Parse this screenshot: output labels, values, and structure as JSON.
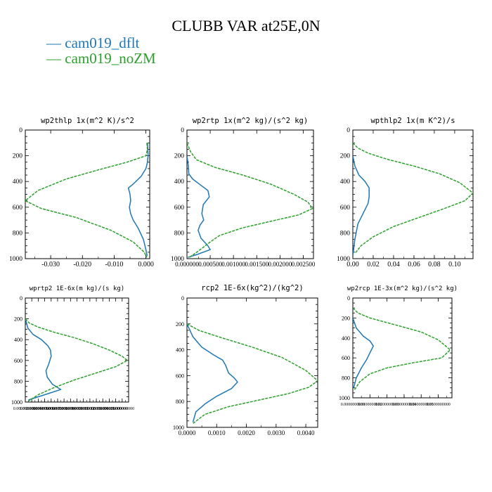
{
  "figure": {
    "title": "CLUBB VAR at25E,0N",
    "legend": [
      {
        "label": "cam019_dflt",
        "color": "#1f77b4"
      },
      {
        "label": "cam019_noZM",
        "color": "#2ca02c"
      }
    ]
  },
  "chart_data": [
    {
      "type": "line",
      "title": "wp2thlp  1x(m^2 K)/s^2",
      "ylim": [
        1000,
        0
      ],
      "xlim": [
        -0.038,
        0.0012
      ],
      "yticks": [
        "0",
        "200",
        "400",
        "600",
        "800",
        "1000"
      ],
      "xticks": [
        "-0.030",
        "-0.020",
        "-0.010",
        "0.000"
      ],
      "xtick_values": [
        -0.03,
        -0.02,
        -0.01,
        0.0
      ],
      "series": [
        {
          "name": "cam019_dflt",
          "color": "#1f77b4",
          "x": [
            0.0005,
            0.0006,
            0.0007,
            0.0005,
            0.0,
            -0.0015,
            -0.004,
            -0.0055,
            -0.005,
            -0.0048,
            -0.0052,
            -0.0048,
            -0.004,
            -0.0025,
            -0.0008,
            0.0,
            0.0004
          ],
          "y": [
            100,
            150,
            200,
            250,
            300,
            360,
            420,
            450,
            500,
            550,
            600,
            650,
            700,
            760,
            850,
            930,
            980
          ]
        },
        {
          "name": "cam019_noZM",
          "color": "#2ca02c",
          "dashed": true,
          "x": [
            0.0003,
            0.0005,
            0.0,
            -0.006,
            -0.015,
            -0.025,
            -0.034,
            -0.038,
            -0.033,
            -0.022,
            -0.011,
            -0.004,
            -0.0005,
            0.0003
          ],
          "y": [
            100,
            150,
            200,
            250,
            310,
            380,
            470,
            550,
            610,
            680,
            780,
            870,
            950,
            990
          ]
        }
      ]
    },
    {
      "type": "line",
      "title": "wp2rtp  1x(m^2 kg)/(s^2 kg)",
      "ylim": [
        1000,
        0
      ],
      "xlim": [
        0,
        0.00272
      ],
      "yticks": [
        "0",
        "200",
        "400",
        "600",
        "800",
        "1000"
      ],
      "xticks": [
        "0.000000",
        "0.000500",
        "0.001000",
        "0.001500",
        "0.002000",
        "0.002500"
      ],
      "xtick_values": [
        0,
        0.0005,
        0.001,
        0.0015,
        0.002,
        0.0025
      ],
      "series": [
        {
          "name": "cam019_dflt",
          "color": "#1f77b4",
          "x": [
            0.0,
            3e-05,
            4e-05,
            0.00012,
            0.0003,
            0.00045,
            0.00048,
            0.00035,
            0.00032,
            0.00036,
            0.00028,
            0.00024,
            0.0003,
            0.00045,
            0.0005,
            0.0002,
            2e-05
          ],
          "y": [
            200,
            280,
            340,
            380,
            430,
            470,
            520,
            580,
            650,
            700,
            740,
            780,
            840,
            900,
            930,
            970,
            990
          ]
        },
        {
          "name": "cam019_noZM",
          "color": "#2ca02c",
          "dashed": true,
          "x": [
            0.0,
            8e-05,
            0.0002,
            0.0006,
            0.0012,
            0.0018,
            0.0023,
            0.0026,
            0.0027,
            0.0024,
            0.0018,
            0.0012,
            0.0007,
            0.0005,
            0.00025,
            5e-05
          ],
          "y": [
            100,
            170,
            230,
            290,
            350,
            420,
            500,
            560,
            610,
            660,
            710,
            760,
            820,
            870,
            940,
            990
          ]
        }
      ]
    },
    {
      "type": "line",
      "title": "wpthlp2  1x(m K^2)/s",
      "ylim": [
        1000,
        0
      ],
      "xlim": [
        0,
        0.118
      ],
      "yticks": [
        "0",
        "200",
        "400",
        "600",
        "800",
        "1000"
      ],
      "xticks": [
        "0.00",
        "0.02",
        "0.04",
        "0.06",
        "0.08",
        "0.10"
      ],
      "xtick_values": [
        0.0,
        0.02,
        0.04,
        0.06,
        0.08,
        0.1
      ],
      "series": [
        {
          "name": "cam019_dflt",
          "color": "#1f77b4",
          "x": [
            0.0,
            0.002,
            0.006,
            0.012,
            0.016,
            0.016,
            0.015,
            0.01,
            0.005,
            0.002,
            0.0
          ],
          "y": [
            200,
            280,
            350,
            400,
            450,
            520,
            570,
            650,
            730,
            850,
            980
          ]
        },
        {
          "name": "cam019_noZM",
          "color": "#2ca02c",
          "dashed": true,
          "x": [
            0.0,
            0.005,
            0.015,
            0.035,
            0.06,
            0.085,
            0.105,
            0.118,
            0.11,
            0.09,
            0.065,
            0.04,
            0.02,
            0.008,
            0.002
          ],
          "y": [
            100,
            140,
            180,
            230,
            280,
            340,
            410,
            490,
            550,
            610,
            680,
            750,
            830,
            900,
            960
          ]
        }
      ]
    },
    {
      "type": "line",
      "title": "wprtp2  1E-6x(m kg)/(s kg)",
      "ylim": [
        1000,
        0
      ],
      "xlim": [
        0,
        16
      ],
      "yticks": [
        "0",
        "200",
        "400",
        "600",
        "800",
        "1000"
      ],
      "xticks": [
        "0.0000000000",
        "1.0000000000",
        "2.0000000000",
        "3.0000000000",
        "4.0000000000",
        "5.0000000000",
        "6.0000000000",
        "7.0000000000",
        "8.0000000000",
        "9.0000000000",
        "10.000000000",
        "11.000000000",
        "12.000000000",
        "13.000000000",
        "14.000000000",
        "15.000000000"
      ],
      "xtick_values": [
        0,
        1,
        2,
        3,
        4,
        5,
        6,
        7,
        8,
        9,
        10,
        11,
        12,
        13,
        14,
        15
      ],
      "series": [
        {
          "name": "cam019_dflt",
          "color": "#1f77b4",
          "x": [
            0.0,
            0.4,
            1.2,
            2.5,
            3.5,
            3.9,
            4.0,
            3.6,
            3.2,
            3.4,
            4.2,
            5.5,
            3.0,
            0.5
          ],
          "y": [
            200,
            290,
            350,
            400,
            460,
            500,
            560,
            640,
            700,
            760,
            830,
            880,
            930,
            980
          ]
        },
        {
          "name": "cam019_noZM",
          "color": "#2ca02c",
          "dashed": true,
          "x": [
            0.0,
            0.6,
            2.0,
            4.5,
            7.5,
            10.5,
            13.0,
            15.0,
            15.8,
            14.0,
            11.0,
            7.5,
            4.5,
            2.0,
            0.5
          ],
          "y": [
            200,
            240,
            280,
            330,
            380,
            440,
            500,
            560,
            600,
            660,
            720,
            790,
            860,
            930,
            990
          ]
        }
      ]
    },
    {
      "type": "line",
      "title": "rcp2  1E-6x(kg^2)/(kg^2)",
      "ylim": [
        1000,
        0
      ],
      "xlim": [
        0,
        0.0044
      ],
      "yticks": [
        "0",
        "200",
        "400",
        "600",
        "800",
        "1000"
      ],
      "xticks": [
        "0.0000",
        "0.0010",
        "0.0020",
        "0.0030",
        "0.0040"
      ],
      "xtick_values": [
        0.0,
        0.001,
        0.002,
        0.003,
        0.004
      ],
      "series": [
        {
          "name": "cam019_dflt",
          "color": "#1f77b4",
          "x": [
            0.0,
            0.0002,
            0.0005,
            0.0009,
            0.0012,
            0.0013,
            0.0014,
            0.0016,
            0.0017,
            0.0015,
            0.001,
            0.0006,
            0.0003,
            0.0002
          ],
          "y": [
            200,
            300,
            380,
            440,
            480,
            520,
            580,
            620,
            650,
            700,
            760,
            820,
            880,
            960
          ]
        },
        {
          "name": "cam019_noZM",
          "color": "#2ca02c",
          "dashed": true,
          "x": [
            0.0,
            0.0004,
            0.0012,
            0.0022,
            0.0032,
            0.004,
            0.0044,
            0.0041,
            0.0034,
            0.0024,
            0.0014,
            0.0006,
            0.0002
          ],
          "y": [
            200,
            250,
            310,
            380,
            460,
            560,
            640,
            690,
            740,
            790,
            840,
            900,
            970
          ]
        }
      ]
    },
    {
      "type": "line",
      "title": "wp2rcp  1E-3x(m^2 kg)/(s^2 kg)",
      "ylim": [
        1000,
        0
      ],
      "xlim": [
        0,
        0.058
      ],
      "yticks": [
        "0",
        "200",
        "400",
        "600",
        "800",
        "1000"
      ],
      "xticks": [
        "0.0000000000",
        "0.0100000000",
        "0.0200000000",
        "0.0300000000",
        "0.0400000000",
        "0.0500000000"
      ],
      "xtick_values": [
        0,
        0.01,
        0.02,
        0.03,
        0.04,
        0.05
      ],
      "series": [
        {
          "name": "cam019_dflt",
          "color": "#1f77b4",
          "x": [
            0.0,
            0.002,
            0.006,
            0.01,
            0.012,
            0.01,
            0.008,
            0.005,
            0.002,
            0.0005
          ],
          "y": [
            200,
            300,
            380,
            430,
            480,
            550,
            620,
            700,
            800,
            900
          ]
        },
        {
          "name": "cam019_noZM",
          "color": "#2ca02c",
          "dashed": true,
          "x": [
            0.0,
            0.003,
            0.01,
            0.025,
            0.04,
            0.05,
            0.057,
            0.052,
            0.035,
            0.02,
            0.01,
            0.004,
            0.001
          ],
          "y": [
            100,
            150,
            200,
            270,
            340,
            420,
            520,
            600,
            650,
            700,
            760,
            840,
            920
          ]
        }
      ]
    }
  ]
}
